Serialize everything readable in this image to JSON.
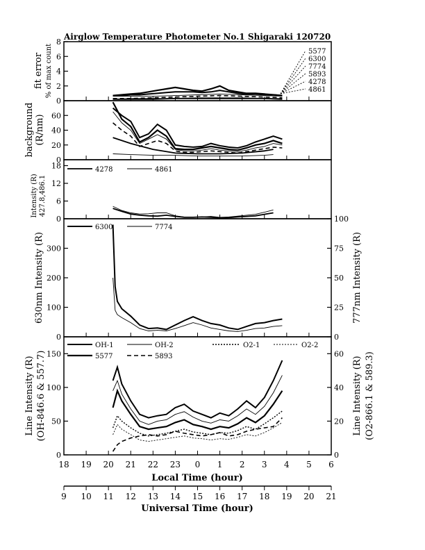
{
  "title": "Airglow Temperature Photometer No.1   Shigaraki   120720",
  "chart_data": [
    {
      "type": "line",
      "panel": "fit-error",
      "ylabel": "fit error",
      "ylabel2": "% of max count",
      "ylim": [
        0,
        8
      ],
      "yticks": [
        "0",
        "2",
        "4",
        "6",
        "8"
      ],
      "legend": [
        "5577",
        "6300",
        "7774",
        "5893",
        "4278",
        "4861"
      ],
      "series": [
        {
          "name": "5577",
          "x": [
            20.2,
            20.6,
            21.0,
            21.4,
            21.8,
            22.2,
            22.6,
            23.0,
            23.4,
            23.8,
            24.2,
            24.6,
            25.0,
            25.4,
            25.8,
            26.2,
            26.6,
            27.0,
            27.4,
            27.8
          ],
          "y": [
            0.7,
            0.8,
            0.9,
            1.0,
            1.2,
            1.4,
            1.6,
            1.8,
            1.6,
            1.4,
            1.3,
            1.6,
            2.0,
            1.4,
            1.2,
            1.0,
            1.0,
            0.9,
            0.8,
            0.7
          ]
        },
        {
          "name": "6300",
          "x": [
            20.2,
            20.6,
            21.0,
            21.4,
            21.8,
            22.2,
            22.6,
            23.0,
            23.4,
            23.8,
            24.2,
            24.6,
            25.0,
            25.4,
            25.8,
            26.2,
            26.6,
            27.0,
            27.4,
            27.8
          ],
          "y": [
            0.7,
            0.7,
            0.8,
            0.8,
            0.9,
            1.0,
            1.1,
            1.2,
            1.2,
            1.2,
            1.1,
            1.2,
            1.4,
            1.2,
            1.0,
            0.9,
            0.9,
            0.8,
            0.8,
            0.7
          ]
        },
        {
          "name": "7774",
          "x": [
            20.2,
            21.0,
            22.0,
            23.0,
            24.0,
            25.0,
            26.0,
            27.0,
            27.8
          ],
          "y": [
            0.6,
            0.6,
            0.6,
            0.7,
            0.8,
            0.9,
            0.8,
            0.7,
            0.6
          ]
        },
        {
          "name": "5893",
          "x": [
            20.2,
            21.0,
            22.0,
            23.0,
            24.0,
            25.0,
            26.0,
            27.0,
            27.8
          ],
          "y": [
            0.3,
            0.3,
            0.4,
            0.5,
            0.6,
            0.7,
            0.6,
            0.5,
            0.4
          ]
        },
        {
          "name": "4278",
          "x": [
            20.2,
            21.0,
            22.0,
            23.0,
            24.0,
            25.0,
            26.0,
            27.0,
            27.8
          ],
          "y": [
            0.2,
            0.2,
            0.2,
            0.3,
            0.3,
            0.3,
            0.3,
            0.3,
            0.2
          ]
        },
        {
          "name": "4861",
          "x": [
            20.2,
            21.0,
            22.0,
            23.0,
            24.0,
            25.0,
            26.0,
            27.0,
            27.8
          ],
          "y": [
            0.2,
            0.3,
            0.3,
            0.3,
            0.4,
            0.4,
            0.4,
            0.3,
            0.3
          ]
        }
      ]
    },
    {
      "type": "line",
      "panel": "background",
      "ylabel": "background",
      "ylabel2": "(R/nm)",
      "ylim": [
        0,
        80
      ],
      "yticks": [
        "0",
        "20",
        "40",
        "60"
      ],
      "series": [
        {
          "name": "5577",
          "x": [
            20.2,
            20.6,
            21.0,
            21.4,
            21.8,
            22.2,
            22.6,
            23.0,
            23.4,
            23.8,
            24.2,
            24.6,
            25.0,
            25.4,
            25.8,
            26.2,
            26.6,
            27.0,
            27.4,
            27.8
          ],
          "y": [
            78,
            55,
            45,
            24,
            30,
            40,
            32,
            15,
            14,
            14,
            16,
            18,
            16,
            14,
            13,
            16,
            20,
            22,
            26,
            22
          ]
        },
        {
          "name": "6300",
          "x": [
            20.2,
            20.6,
            21.0,
            21.4,
            21.8,
            22.2,
            22.6,
            23.0,
            23.4,
            23.8,
            24.2,
            24.6,
            25.0,
            25.4,
            25.8,
            26.2,
            26.6,
            27.0,
            27.4,
            27.8
          ],
          "y": [
            70,
            60,
            52,
            30,
            35,
            48,
            40,
            20,
            18,
            17,
            18,
            22,
            19,
            17,
            16,
            19,
            24,
            28,
            32,
            28
          ]
        },
        {
          "name": "7774",
          "x": [
            20.2,
            20.6,
            21.0,
            21.4,
            21.8,
            22.2,
            22.6,
            23.0,
            23.4,
            23.8,
            24.2,
            24.6,
            25.0,
            25.4,
            25.8,
            26.2,
            26.6,
            27.0,
            27.4,
            27.8
          ],
          "y": [
            65,
            50,
            40,
            22,
            28,
            34,
            28,
            14,
            12,
            12,
            13,
            15,
            13,
            12,
            11,
            13,
            16,
            18,
            22,
            20
          ]
        },
        {
          "name": "5893",
          "x": [
            20.2,
            20.6,
            21.0,
            21.4,
            21.8,
            22.2,
            22.6,
            23.0,
            23.4,
            23.8,
            24.2,
            24.6,
            25.0,
            25.4,
            25.8,
            26.2,
            26.6,
            27.0,
            27.4,
            27.8
          ],
          "y": [
            50,
            40,
            32,
            18,
            22,
            26,
            22,
            12,
            10,
            10,
            11,
            12,
            11,
            10,
            9,
            11,
            13,
            15,
            17,
            16
          ]
        },
        {
          "name": "4278",
          "x": [
            20.2,
            21.0,
            22.0,
            23.0,
            24.0,
            25.0,
            26.0,
            27.0,
            27.4
          ],
          "y": [
            30,
            22,
            14,
            9,
            8,
            8,
            9,
            12,
            14
          ]
        },
        {
          "name": "4861",
          "x": [
            20.2,
            21.0,
            22.0,
            23.0,
            24.0,
            25.0,
            26.0,
            27.0,
            27.4
          ],
          "y": [
            8,
            7,
            6,
            6,
            5,
            5,
            5,
            6,
            7
          ]
        }
      ]
    },
    {
      "type": "line",
      "panel": "intensity-blue",
      "ylabel": "Intensity (R)",
      "ylabel2": "427.8,486.1",
      "ylim": [
        0,
        20
      ],
      "yticks": [
        "0",
        "6",
        "12",
        "18"
      ],
      "legend": [
        "4278",
        "4861"
      ],
      "series": [
        {
          "name": "4278",
          "x": [
            20.2,
            20.6,
            21.0,
            21.4,
            21.8,
            22.2,
            22.6,
            23.0,
            23.4,
            23.8,
            24.2,
            24.6,
            25.0,
            25.4,
            25.8,
            26.2,
            26.6,
            27.0,
            27.4
          ],
          "y": [
            3.5,
            2.5,
            1.6,
            1.2,
            1.0,
            0.9,
            1.2,
            0.8,
            0.5,
            0.5,
            0.6,
            0.5,
            0.3,
            0.4,
            0.6,
            0.8,
            1.0,
            1.5,
            2.0
          ]
        },
        {
          "name": "4861",
          "x": [
            20.2,
            20.6,
            21.0,
            21.4,
            21.8,
            22.2,
            22.6,
            23.0,
            23.4,
            23.8,
            24.2,
            24.6,
            25.0,
            25.4,
            25.8,
            26.2,
            26.6,
            27.0,
            27.4
          ],
          "y": [
            4.2,
            2.8,
            2.0,
            1.6,
            1.7,
            2.0,
            2.0,
            1.0,
            0.6,
            0.5,
            0.6,
            0.8,
            0.5,
            0.6,
            0.9,
            1.2,
            1.5,
            2.2,
            3.0
          ]
        }
      ]
    },
    {
      "type": "line",
      "panel": "630-777",
      "ylabel": "630nm Intensity (R)",
      "ylabel_right": "777nm Intensity (R)",
      "ylim": [
        0,
        400
      ],
      "ylim_right": [
        0,
        100
      ],
      "yticks": [
        "0",
        "100",
        "200",
        "300"
      ],
      "yticks_right": [
        "0",
        "25",
        "50",
        "75",
        "100"
      ],
      "legend": [
        "6300",
        "7774"
      ],
      "series": [
        {
          "name": "6300",
          "x": [
            20.2,
            20.3,
            20.4,
            20.6,
            21.0,
            21.4,
            21.8,
            22.2,
            22.6,
            23.0,
            23.4,
            23.8,
            24.2,
            24.6,
            25.0,
            25.4,
            25.8,
            26.2,
            26.6,
            27.0,
            27.4,
            27.8
          ],
          "y": [
            380,
            170,
            120,
            95,
            70,
            40,
            28,
            30,
            25,
            40,
            55,
            68,
            55,
            45,
            40,
            30,
            25,
            35,
            45,
            48,
            55,
            60
          ]
        },
        {
          "name": "7774",
          "x": [
            20.2,
            20.3,
            20.4,
            20.6,
            21.0,
            21.4,
            21.8,
            22.2,
            22.6,
            23.0,
            23.4,
            23.8,
            24.2,
            24.6,
            25.0,
            25.4,
            25.8,
            26.2,
            26.6,
            27.0,
            27.4,
            27.8
          ],
          "y": [
            200,
            90,
            75,
            65,
            48,
            28,
            20,
            22,
            20,
            28,
            38,
            48,
            40,
            30,
            25,
            20,
            18,
            22,
            28,
            30,
            35,
            38
          ]
        }
      ]
    },
    {
      "type": "line",
      "panel": "line-intensity",
      "xlabel": "Local Time (hour)",
      "xlabel2": "Universal Time (hour)",
      "ylabel": "Line Intensity (R)",
      "ylabel2": "(OH-846.6 & 557.7)",
      "ylabel_right": "Line Intensity (R)",
      "ylabel_right2": "(O2-866.1 & 589.3)",
      "ylim": [
        0,
        175
      ],
      "ylim_right": [
        0,
        70
      ],
      "yticks": [
        "0",
        "50",
        "100",
        "150"
      ],
      "yticks_right": [
        "0",
        "20",
        "40",
        "60"
      ],
      "xticks_local": [
        "18",
        "19",
        "20",
        "21",
        "22",
        "23",
        "0",
        "1",
        "2",
        "3",
        "4",
        "5",
        "6"
      ],
      "xticks_ut": [
        "9",
        "10",
        "11",
        "12",
        "13",
        "14",
        "15",
        "16",
        "17",
        "18",
        "19",
        "20",
        "21"
      ],
      "legend": [
        "OH-1",
        "OH-2",
        "O2-1",
        "O2-2",
        "5577",
        "5893"
      ],
      "series": [
        {
          "name": "OH-1",
          "x": [
            20.2,
            20.4,
            20.6,
            21.0,
            21.4,
            21.8,
            22.2,
            22.6,
            23.0,
            23.4,
            23.8,
            24.2,
            24.6,
            25.0,
            25.4,
            25.8,
            26.2,
            26.6,
            27.0,
            27.4,
            27.8
          ],
          "y": [
            110,
            130,
            105,
            80,
            60,
            55,
            58,
            60,
            70,
            75,
            65,
            60,
            55,
            62,
            58,
            68,
            80,
            70,
            85,
            110,
            140
          ]
        },
        {
          "name": "OH-2",
          "x": [
            20.2,
            20.4,
            20.6,
            21.0,
            21.4,
            21.8,
            22.2,
            22.6,
            23.0,
            23.4,
            23.8,
            24.2,
            24.6,
            25.0,
            25.4,
            25.8,
            26.2,
            26.6,
            27.0,
            27.4,
            27.8
          ],
          "y": [
            95,
            110,
            90,
            68,
            50,
            45,
            50,
            52,
            60,
            64,
            56,
            50,
            47,
            52,
            50,
            58,
            68,
            60,
            72,
            92,
            118
          ]
        },
        {
          "name": "O2-1",
          "x": [
            20.2,
            20.4,
            20.6,
            21.0,
            21.4,
            21.8,
            22.2,
            22.6,
            23.0,
            23.4,
            23.8,
            24.2,
            24.6,
            25.0,
            25.4,
            25.8,
            26.2,
            26.6,
            27.0,
            27.4,
            27.8
          ],
          "y": [
            40,
            58,
            50,
            40,
            32,
            28,
            30,
            32,
            35,
            38,
            34,
            32,
            30,
            33,
            32,
            36,
            42,
            38,
            46,
            55,
            65
          ]
        },
        {
          "name": "O2-2",
          "x": [
            20.2,
            20.4,
            20.6,
            21.0,
            21.4,
            21.8,
            22.2,
            22.6,
            23.0,
            23.4,
            23.8,
            24.2,
            24.6,
            25.0,
            25.4,
            25.8,
            26.2,
            26.6,
            27.0,
            27.4,
            27.8
          ],
          "y": [
            30,
            45,
            38,
            30,
            22,
            20,
            22,
            24,
            26,
            28,
            25,
            24,
            22,
            24,
            23,
            26,
            30,
            28,
            33,
            40,
            48
          ]
        },
        {
          "name": "5577",
          "x": [
            20.2,
            20.4,
            20.6,
            21.0,
            21.4,
            21.8,
            22.2,
            22.6,
            23.0,
            23.4,
            23.8,
            24.2,
            24.6,
            25.0,
            25.4,
            25.8,
            26.2,
            26.6,
            27.0,
            27.4,
            27.8
          ],
          "y": [
            70,
            95,
            80,
            60,
            42,
            38,
            40,
            42,
            48,
            52,
            45,
            42,
            38,
            42,
            40,
            46,
            55,
            48,
            58,
            75,
            95
          ]
        },
        {
          "name": "5893",
          "x": [
            20.2,
            20.4,
            20.6,
            21.0,
            21.4,
            21.8,
            22.2,
            22.6,
            23.0,
            23.4,
            23.8,
            24.2,
            24.6,
            25.0,
            25.4,
            25.8,
            26.2,
            26.6,
            27.0,
            27.4,
            27.8
          ],
          "y": [
            5,
            15,
            20,
            25,
            28,
            30,
            28,
            30,
            35,
            32,
            30,
            28,
            30,
            33,
            28,
            30,
            35,
            38,
            40,
            42,
            55
          ]
        }
      ]
    }
  ]
}
